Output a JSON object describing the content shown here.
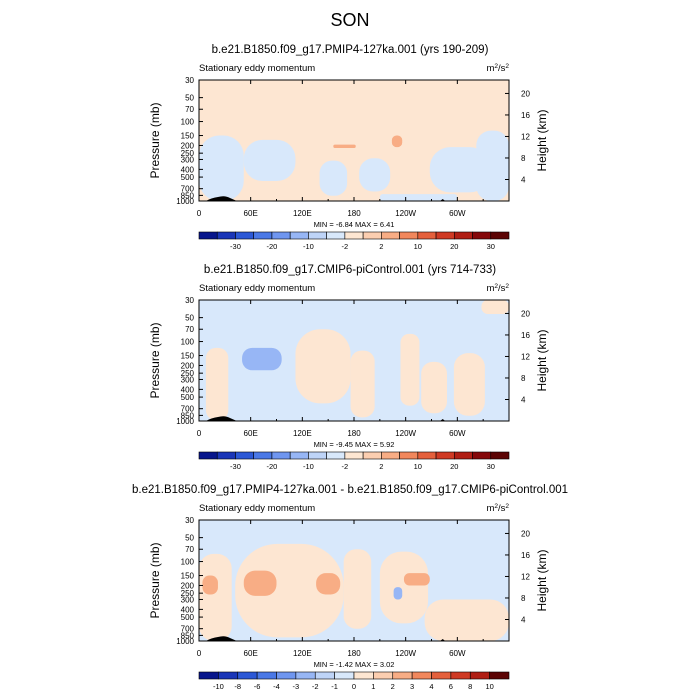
{
  "figure": {
    "title": "SON"
  },
  "chart_data": [
    {
      "type": "heatmap",
      "title": "b.e21.B1850.f09_g17.PMIP4-127ka.001 (yrs 190-209)",
      "left_label": "Stationary eddy momentum",
      "units": "m²/s²",
      "units_base": "m",
      "units_sup1": "2",
      "units_mid": "/s",
      "units_sup2": "2",
      "ylabel": "Pressure (mb)",
      "ylabel_right": "Height (km)",
      "x_ticks": [
        "0",
        "60E",
        "120E",
        "180",
        "120W",
        "60W"
      ],
      "x_tick_lon": [
        0,
        60,
        120,
        180,
        240,
        300
      ],
      "xlim": [
        0,
        360
      ],
      "y_ticks": [
        "30",
        "50",
        "70",
        "100",
        "150",
        "200",
        "250",
        "300",
        "400",
        "500",
        "700",
        "850",
        "1000"
      ],
      "y_tick_p": [
        30,
        50,
        70,
        100,
        150,
        200,
        250,
        300,
        400,
        500,
        700,
        850,
        1000
      ],
      "ylim": [
        1000,
        30
      ],
      "y_scale": "log",
      "height_ticks": [
        "4",
        "8",
        "12",
        "16",
        "20"
      ],
      "height_km": [
        4,
        8,
        12,
        16,
        20
      ],
      "minmax_text": "MIN = -6.84  MAX =  6.41",
      "min": -6.84,
      "max": 6.41,
      "colorbar_levels": [
        "-30",
        "-20",
        "-10",
        "-2",
        "2",
        "10",
        "20",
        "30"
      ],
      "colorbar_label_edges": [
        2,
        4,
        6,
        8,
        10,
        12,
        14,
        16
      ],
      "colorbar_colors": [
        "#08168c",
        "#1a36b8",
        "#2c58d6",
        "#4a78e6",
        "#6f96f0",
        "#97b6f5",
        "#bed4f8",
        "#d8e8fb",
        "#fde6d2",
        "#fcceb0",
        "#f8ad85",
        "#f1875c",
        "#e4603c",
        "#cf3a24",
        "#b01e14",
        "#85080a",
        "#5c0404"
      ],
      "regions": [
        {
          "level": "pos_weak",
          "lon": [
            0,
            360
          ],
          "p": [
            30,
            1000
          ]
        },
        {
          "level": "neg_weak",
          "lon": [
            0,
            52
          ],
          "p": [
            150,
            1000
          ]
        },
        {
          "level": "neg_weak",
          "lon": [
            52,
            112
          ],
          "p": [
            170,
            560
          ]
        },
        {
          "level": "neg_weak",
          "lon": [
            140,
            172
          ],
          "p": [
            310,
            860
          ]
        },
        {
          "level": "neg_weak",
          "lon": [
            186,
            222
          ],
          "p": [
            290,
            760
          ]
        },
        {
          "level": "neg_weak",
          "lon": [
            268,
            338
          ],
          "p": [
            210,
            780
          ]
        },
        {
          "level": "neg_weak",
          "lon": [
            322,
            360
          ],
          "p": [
            130,
            1000
          ]
        },
        {
          "level": "neg_weak",
          "lon": [
            210,
            300
          ],
          "p": [
            820,
            1000
          ]
        },
        {
          "level": "pos_mid",
          "lon": [
            224,
            236
          ],
          "p": [
            150,
            210
          ]
        },
        {
          "level": "pos_mid",
          "lon": [
            156,
            182
          ],
          "p": [
            195,
            215
          ]
        }
      ]
    },
    {
      "type": "heatmap",
      "title": "b.e21.B1850.f09_g17.CMIP6-piControl.001 (yrs 714-733)",
      "left_label": "Stationary eddy momentum",
      "units": "m²/s²",
      "units_base": "m",
      "units_sup1": "2",
      "units_mid": "/s",
      "units_sup2": "2",
      "ylabel": "Pressure (mb)",
      "ylabel_right": "Height (km)",
      "x_ticks": [
        "0",
        "60E",
        "120E",
        "180",
        "120W",
        "60W"
      ],
      "x_tick_lon": [
        0,
        60,
        120,
        180,
        240,
        300
      ],
      "xlim": [
        0,
        360
      ],
      "y_ticks": [
        "30",
        "50",
        "70",
        "100",
        "150",
        "200",
        "250",
        "300",
        "400",
        "500",
        "700",
        "850",
        "1000"
      ],
      "y_tick_p": [
        30,
        50,
        70,
        100,
        150,
        200,
        250,
        300,
        400,
        500,
        700,
        850,
        1000
      ],
      "ylim": [
        1000,
        30
      ],
      "y_scale": "log",
      "height_ticks": [
        "4",
        "8",
        "12",
        "16",
        "20"
      ],
      "height_km": [
        4,
        8,
        12,
        16,
        20
      ],
      "minmax_text": "MIN = -9.45  MAX =  5.92",
      "min": -9.45,
      "max": 5.92,
      "colorbar_levels": [
        "-30",
        "-20",
        "-10",
        "-2",
        "2",
        "10",
        "20",
        "30"
      ],
      "colorbar_label_edges": [
        2,
        4,
        6,
        8,
        10,
        12,
        14,
        16
      ],
      "colorbar_colors": [
        "#08168c",
        "#1a36b8",
        "#2c58d6",
        "#4a78e6",
        "#6f96f0",
        "#97b6f5",
        "#bed4f8",
        "#d8e8fb",
        "#fde6d2",
        "#fcceb0",
        "#f8ad85",
        "#f1875c",
        "#e4603c",
        "#cf3a24",
        "#b01e14",
        "#85080a",
        "#5c0404"
      ],
      "regions": [
        {
          "level": "neg_weak",
          "lon": [
            0,
            360
          ],
          "p": [
            30,
            1000
          ]
        },
        {
          "level": "pos_weak",
          "lon": [
            8,
            34
          ],
          "p": [
            120,
            980
          ]
        },
        {
          "level": "pos_weak",
          "lon": [
            112,
            176
          ],
          "p": [
            70,
            600
          ]
        },
        {
          "level": "pos_weak",
          "lon": [
            176,
            204
          ],
          "p": [
            130,
            900
          ]
        },
        {
          "level": "pos_weak",
          "lon": [
            234,
            256
          ],
          "p": [
            80,
            640
          ]
        },
        {
          "level": "pos_weak",
          "lon": [
            258,
            288
          ],
          "p": [
            180,
            800
          ]
        },
        {
          "level": "pos_weak",
          "lon": [
            296,
            332
          ],
          "p": [
            140,
            860
          ]
        },
        {
          "level": "pos_weak",
          "lon": [
            328,
            360
          ],
          "p": [
            30,
            45
          ]
        },
        {
          "level": "neg_mid",
          "lon": [
            50,
            96
          ],
          "p": [
            120,
            230
          ]
        }
      ]
    },
    {
      "type": "heatmap",
      "title": "b.e21.B1850.f09_g17.PMIP4-127ka.001 - b.e21.B1850.f09_g17.CMIP6-piControl.001",
      "left_label": "Stationary eddy momentum",
      "units": "m²/s²",
      "units_base": "m",
      "units_sup1": "2",
      "units_mid": "/s",
      "units_sup2": "2",
      "ylabel": "Pressure (mb)",
      "ylabel_right": "Height (km)",
      "x_ticks": [
        "0",
        "60E",
        "120E",
        "180",
        "120W",
        "60W"
      ],
      "x_tick_lon": [
        0,
        60,
        120,
        180,
        240,
        300
      ],
      "xlim": [
        0,
        360
      ],
      "y_ticks": [
        "30",
        "50",
        "70",
        "100",
        "150",
        "200",
        "250",
        "300",
        "400",
        "500",
        "700",
        "850",
        "1000"
      ],
      "y_tick_p": [
        30,
        50,
        70,
        100,
        150,
        200,
        250,
        300,
        400,
        500,
        700,
        850,
        1000
      ],
      "ylim": [
        1000,
        30
      ],
      "y_scale": "log",
      "height_ticks": [
        "4",
        "8",
        "12",
        "16",
        "20"
      ],
      "height_km": [
        4,
        8,
        12,
        16,
        20
      ],
      "minmax_text": "MIN = -1.42  MAX =  3.02",
      "min": -1.42,
      "max": 3.02,
      "colorbar_levels": [
        "-10",
        "-8",
        "-6",
        "-4",
        "-3",
        "-2",
        "-1",
        "0",
        "1",
        "2",
        "3",
        "4",
        "6",
        "8",
        "10"
      ],
      "colorbar_label_edges": [
        1,
        2,
        3,
        4,
        5,
        6,
        7,
        8,
        9,
        10,
        11,
        12,
        13,
        14,
        15
      ],
      "colorbar_colors": [
        "#08168c",
        "#1a36b8",
        "#2c58d6",
        "#4a78e6",
        "#6f96f0",
        "#97b6f5",
        "#bed4f8",
        "#d8e8fb",
        "#fde6d2",
        "#fcceb0",
        "#f8ad85",
        "#f1875c",
        "#e4603c",
        "#cf3a24",
        "#b01e14",
        "#5c0404"
      ],
      "regions": [
        {
          "level": "neg_weak",
          "lon": [
            0,
            360
          ],
          "p": [
            30,
            1000
          ]
        },
        {
          "level": "pos_weak",
          "lon": [
            0,
            38
          ],
          "p": [
            80,
            1000
          ]
        },
        {
          "level": "pos_weak",
          "lon": [
            42,
            168
          ],
          "p": [
            60,
            900
          ]
        },
        {
          "level": "pos_weak",
          "lon": [
            168,
            200
          ],
          "p": [
            70,
            700
          ]
        },
        {
          "level": "pos_weak",
          "lon": [
            210,
            266
          ],
          "p": [
            75,
            600
          ]
        },
        {
          "level": "pos_weak",
          "lon": [
            262,
            360
          ],
          "p": [
            300,
            1000
          ]
        },
        {
          "level": "pos_mid",
          "lon": [
            4,
            22
          ],
          "p": [
            150,
            260
          ]
        },
        {
          "level": "pos_mid",
          "lon": [
            52,
            90
          ],
          "p": [
            130,
            270
          ]
        },
        {
          "level": "pos_mid",
          "lon": [
            136,
            164
          ],
          "p": [
            140,
            260
          ]
        },
        {
          "level": "pos_mid",
          "lon": [
            238,
            268
          ],
          "p": [
            140,
            200
          ]
        },
        {
          "level": "neg_mid",
          "lon": [
            226,
            236
          ],
          "p": [
            210,
            300
          ]
        }
      ]
    }
  ]
}
